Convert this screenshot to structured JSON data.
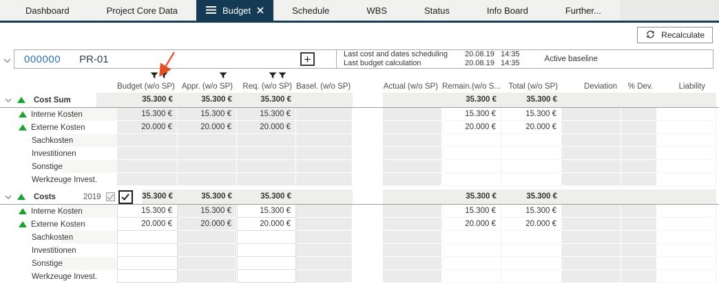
{
  "colors": {
    "accent_navy": "#143a55",
    "positive_green": "#17a52e",
    "project_number_blue": "#2d6fb7",
    "annotation_orange": "#e0512a",
    "cell_gray": "#ebebeb",
    "band_gray": "#eeeeec"
  },
  "tabs": [
    {
      "label": "Dashboard",
      "active": false
    },
    {
      "label": "Project Core Data",
      "active": false
    },
    {
      "label": "Budget",
      "active": true,
      "icons": [
        "menu-icon",
        "close-icon"
      ]
    },
    {
      "label": "Schedule",
      "active": false
    },
    {
      "label": "WBS",
      "active": false
    },
    {
      "label": "Status",
      "active": false
    },
    {
      "label": "Info Board",
      "active": false
    },
    {
      "label": "Further...",
      "active": false
    }
  ],
  "toolbar": {
    "recalculate_label": "Recalculate"
  },
  "project_header": {
    "number": "000000",
    "code": "PR-01",
    "add_button": "+",
    "status_lines": [
      {
        "label": "Last cost and dates scheduling",
        "date": "20.08.19",
        "time": "14:35"
      },
      {
        "label": "Last budget calculation",
        "date": "20.08.19",
        "time": "14:35"
      }
    ],
    "baseline_label": "Active baseline"
  },
  "table": {
    "columns": [
      {
        "key": "budget",
        "label": "Budget (w/o SP)",
        "filter_icons": 2
      },
      {
        "key": "appr",
        "label": "Appr. (w/o SP)",
        "filter_icons": 1
      },
      {
        "key": "req",
        "label": "Req. (w/o SP)",
        "filter_icons": 2
      },
      {
        "key": "basel",
        "label": "Basel. (w/o SP)",
        "filter_icons": 0
      },
      {
        "key": "actual",
        "label": "Actual (w/o SP)",
        "filter_icons": 0
      },
      {
        "key": "remain",
        "label": "Remain.(w/o S...",
        "filter_icons": 0
      },
      {
        "key": "total",
        "label": "Total (w/o SP)",
        "filter_icons": 0
      },
      {
        "key": "deviation",
        "label": "Deviation",
        "filter_icons": 0
      },
      {
        "key": "pdev",
        "label": "% Dev.",
        "filter_icons": 0
      },
      {
        "key": "liability",
        "label": "Liability",
        "filter_icons": 0
      }
    ],
    "gray_columns": [
      "budget",
      "appr",
      "req",
      "basel",
      "actual",
      "deviation",
      "pdev"
    ],
    "groups": [
      {
        "label": "Cost Sum",
        "trend": "up",
        "editable_columns": [],
        "values": {
          "budget": "35.300 €",
          "appr": "35.300 €",
          "req": "35.300 €",
          "remain": "35.300 €",
          "total": "35.300 €"
        },
        "rows": [
          {
            "label": "Interne Kosten",
            "trend": "up",
            "values": {
              "budget": "15.300 €",
              "appr": "15.300 €",
              "req": "15.300 €",
              "remain": "15.300 €",
              "total": "15.300 €"
            }
          },
          {
            "label": "Externe Kosten",
            "trend": "up",
            "values": {
              "budget": "20.000 €",
              "appr": "20.000 €",
              "req": "20.000 €",
              "remain": "20.000 €",
              "total": "20.000 €"
            }
          },
          {
            "label": "Sachkosten",
            "values": {}
          },
          {
            "label": "Investitionen",
            "values": {}
          },
          {
            "label": "Sonstige",
            "values": {}
          },
          {
            "label": "Werkzeuge Invest.",
            "values": {}
          }
        ]
      },
      {
        "label": "Costs",
        "year": "2019",
        "trend": "up",
        "checkboxes": [
          {
            "checked": true,
            "disabled": true
          },
          {
            "checked": true,
            "disabled": false
          }
        ],
        "editable_columns": [
          "budget",
          "req"
        ],
        "values": {
          "budget": "35.300 €",
          "appr": "35.300 €",
          "req": "35.300 €",
          "remain": "35.300 €",
          "total": "35.300 €"
        },
        "rows": [
          {
            "label": "Interne Kosten",
            "trend": "up",
            "values": {
              "budget": "15.300 €",
              "appr": "15.300 €",
              "req": "15.300 €",
              "remain": "15.300 €",
              "total": "15.300 €"
            }
          },
          {
            "label": "Externe Kosten",
            "trend": "up",
            "values": {
              "budget": "20.000 €",
              "appr": "20.000 €",
              "req": "20.000 €",
              "remain": "20.000 €",
              "total": "20.000 €"
            }
          },
          {
            "label": "Sachkosten",
            "values": {}
          },
          {
            "label": "Investitionen",
            "values": {}
          },
          {
            "label": "Sonstige",
            "values": {}
          },
          {
            "label": "Werkzeuge Invest.",
            "values": {}
          }
        ]
      }
    ]
  }
}
